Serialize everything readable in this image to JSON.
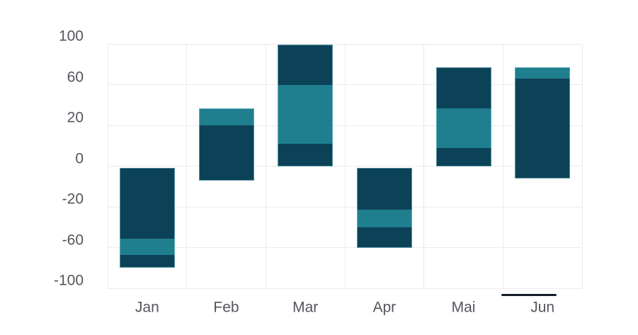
{
  "chart_data": {
    "type": "bar",
    "subtype": "floating-range-bars-with-inner-band",
    "title": "",
    "xlabel": "",
    "ylabel": "",
    "categories": [
      "Jan",
      "Feb",
      "Mar",
      "Apr",
      "Mai",
      "Jun"
    ],
    "y_ticks": [
      100,
      60,
      20,
      0,
      -20,
      -60,
      -100
    ],
    "y_axis_note": "tick labels evenly spaced; axis is piecewise (20-unit and 40-unit intervals share equal pixel spacing)",
    "grid": true,
    "legend": false,
    "bars": [
      {
        "category": "Jan",
        "segments": [
          {
            "from": -1,
            "to": -51,
            "color": "dark"
          },
          {
            "from": -51,
            "to": -67,
            "color": "teal"
          },
          {
            "from": -67,
            "to": -80,
            "color": "dark"
          }
        ]
      },
      {
        "category": "Feb",
        "segments": [
          {
            "from": 37,
            "to": 20,
            "color": "teal"
          },
          {
            "from": 20,
            "to": -7,
            "color": "dark"
          }
        ]
      },
      {
        "category": "Mar",
        "segments": [
          {
            "from": 99,
            "to": 60,
            "color": "dark"
          },
          {
            "from": 60,
            "to": 11,
            "color": "teal"
          },
          {
            "from": 11,
            "to": 0,
            "color": "dark"
          }
        ]
      },
      {
        "category": "Apr",
        "segments": [
          {
            "from": -1,
            "to": -23,
            "color": "dark"
          },
          {
            "from": -23,
            "to": -40,
            "color": "teal"
          },
          {
            "from": -40,
            "to": -60,
            "color": "dark"
          }
        ]
      },
      {
        "category": "Mai",
        "segments": [
          {
            "from": 77,
            "to": 37,
            "color": "dark"
          },
          {
            "from": 37,
            "to": 9,
            "color": "teal"
          },
          {
            "from": 9,
            "to": 0,
            "color": "dark"
          }
        ]
      },
      {
        "category": "Jun",
        "segments": [
          {
            "from": 77,
            "to": 66,
            "color": "teal"
          },
          {
            "from": 66,
            "to": -6,
            "color": "dark"
          }
        ]
      }
    ],
    "colors": {
      "dark": "#0c4257",
      "teal": "#1f7f8e",
      "grid": "#ebebee",
      "axis_text": "#54555d",
      "scroll_thumb": "#151d28",
      "background": "#ffffff"
    },
    "scroll_thumb": {
      "visible": true,
      "aligned_category": "Jun"
    }
  }
}
